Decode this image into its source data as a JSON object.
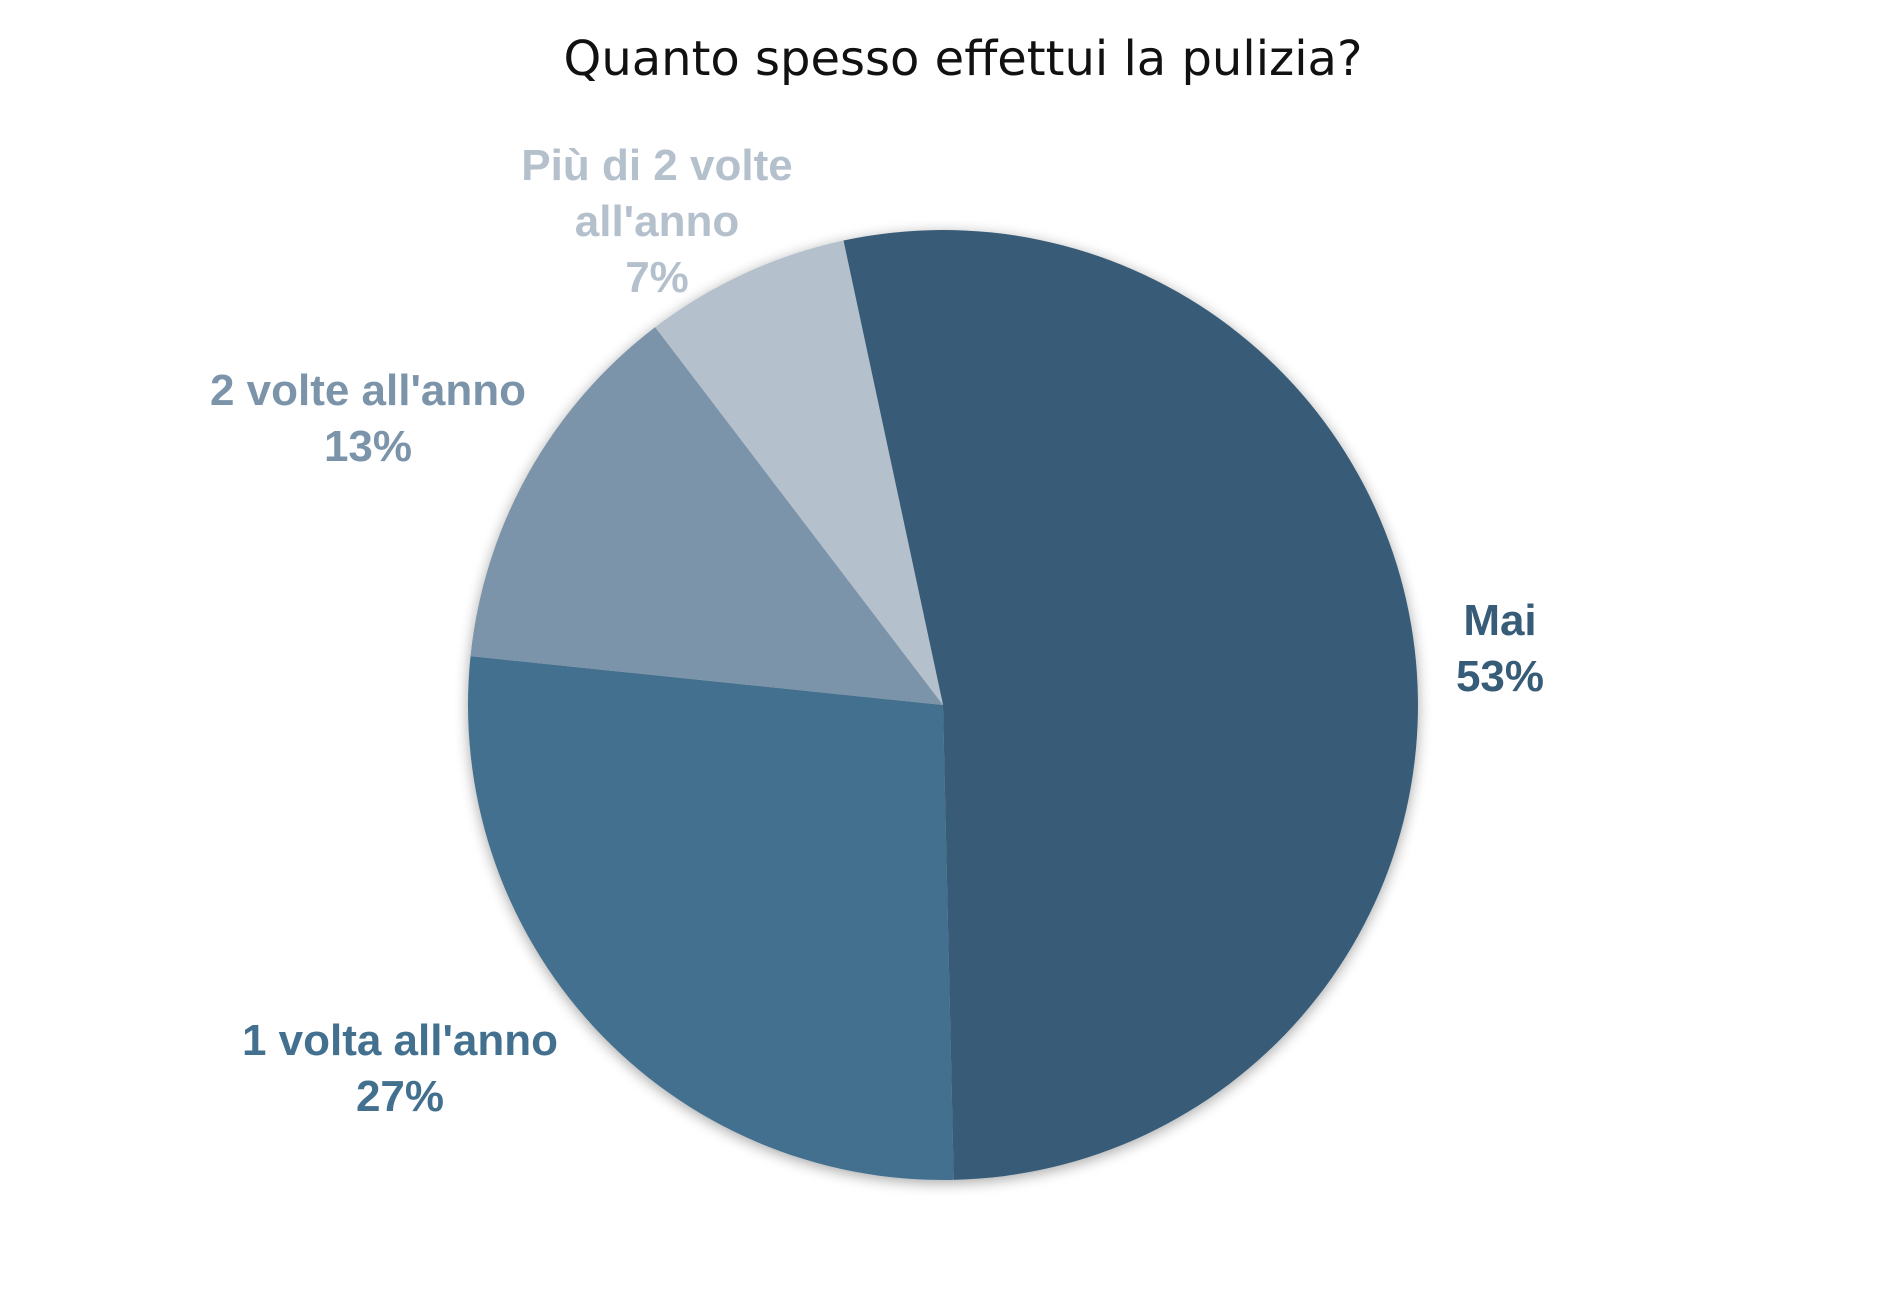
{
  "chart_data": {
    "type": "pie",
    "title": "Quanto spesso effettui la pulizia?",
    "slices": [
      {
        "label": "Mai",
        "value": 53,
        "display": "53%",
        "color": "#375c77"
      },
      {
        "label": "1 volta all'anno",
        "value": 27,
        "display": "27%",
        "color": "#42708e"
      },
      {
        "label": "2 volte all'anno",
        "value": 13,
        "display": "13%",
        "color": "#7b94aa"
      },
      {
        "label": "Più di 2 volte all'anno",
        "value": 7,
        "display": "7%",
        "color": "#b4c0cc"
      }
    ],
    "legend": "none"
  }
}
